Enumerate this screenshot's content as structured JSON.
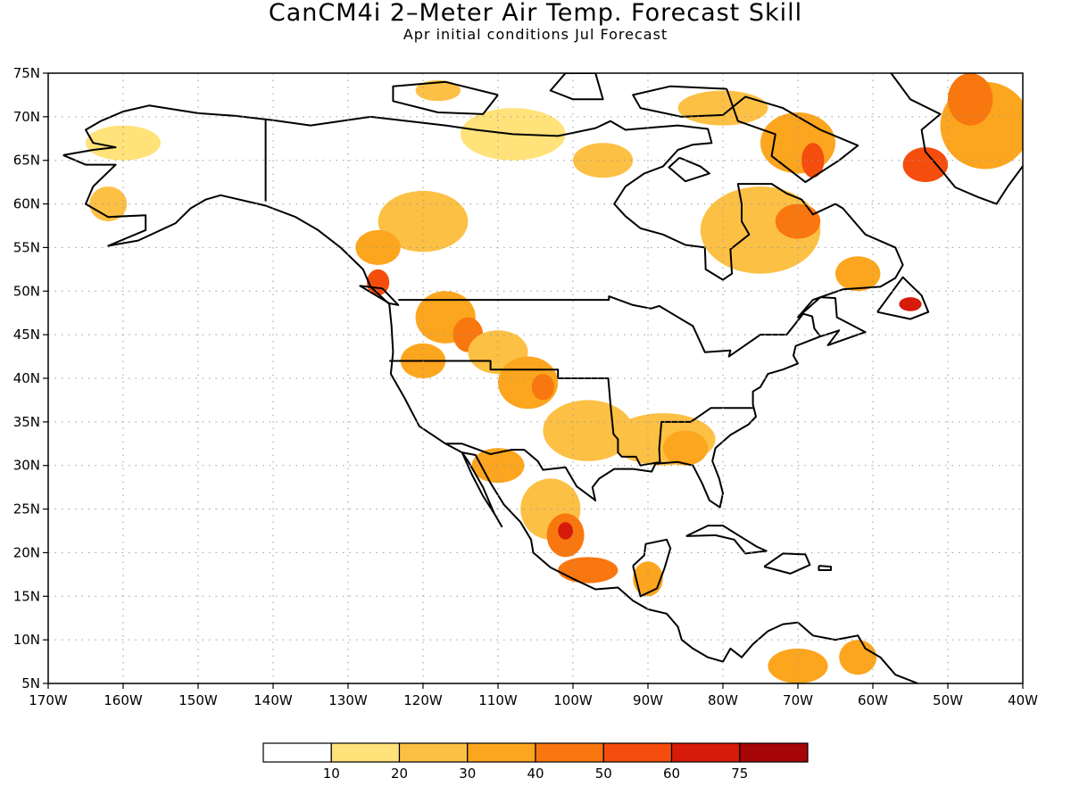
{
  "title": "CanCM4i 2–Meter Air Temp. Forecast Skill",
  "subtitle": "Apr initial conditions   Jul Forecast",
  "lat_ticks": [
    "75N",
    "70N",
    "65N",
    "60N",
    "55N",
    "50N",
    "45N",
    "40N",
    "35N",
    "30N",
    "25N",
    "20N",
    "15N",
    "10N",
    "5N"
  ],
  "lon_ticks": [
    "170W",
    "160W",
    "150W",
    "140W",
    "130W",
    "120W",
    "110W",
    "100W",
    "90W",
    "80W",
    "70W",
    "60W",
    "50W",
    "40W"
  ],
  "extent": {
    "lon": [
      -170,
      -40
    ],
    "lat": [
      5,
      75
    ]
  },
  "colorbar": {
    "labels": [
      "10",
      "20",
      "30",
      "40",
      "50",
      "60",
      "75"
    ],
    "colors": [
      "#ffffff",
      "#ffe27a",
      "#fcc045",
      "#fca51e",
      "#f9770f",
      "#f44d0d",
      "#d61b0b",
      "#a60606"
    ]
  },
  "skill_regions": [
    {
      "lon": -160,
      "lat": 67,
      "rx": 5,
      "ry": 2,
      "level": 1
    },
    {
      "lon": -162,
      "lat": 60,
      "rx": 2.5,
      "ry": 2,
      "level": 2
    },
    {
      "lon": -120,
      "lat": 58,
      "rx": 6,
      "ry": 3.5,
      "level": 2
    },
    {
      "lon": -126,
      "lat": 55,
      "rx": 3,
      "ry": 2,
      "level": 3
    },
    {
      "lon": -126,
      "lat": 51,
      "rx": 1.5,
      "ry": 1.5,
      "level": 5
    },
    {
      "lon": -117,
      "lat": 47,
      "rx": 4,
      "ry": 3,
      "level": 3
    },
    {
      "lon": -114,
      "lat": 45,
      "rx": 2,
      "ry": 2,
      "level": 4
    },
    {
      "lon": -110,
      "lat": 43,
      "rx": 4,
      "ry": 2.5,
      "level": 2
    },
    {
      "lon": -106,
      "lat": 39.5,
      "rx": 4,
      "ry": 3,
      "level": 3
    },
    {
      "lon": -104,
      "lat": 39,
      "rx": 1.5,
      "ry": 1.5,
      "level": 4
    },
    {
      "lon": -120,
      "lat": 42,
      "rx": 3,
      "ry": 2,
      "level": 3
    },
    {
      "lon": -98,
      "lat": 34,
      "rx": 6,
      "ry": 3.5,
      "level": 2
    },
    {
      "lon": -88,
      "lat": 33,
      "rx": 7,
      "ry": 3,
      "level": 2
    },
    {
      "lon": -85,
      "lat": 32,
      "rx": 3,
      "ry": 2,
      "level": 3
    },
    {
      "lon": -110,
      "lat": 30,
      "rx": 3.5,
      "ry": 2,
      "level": 3
    },
    {
      "lon": -103,
      "lat": 25,
      "rx": 4,
      "ry": 3.5,
      "level": 2
    },
    {
      "lon": -101,
      "lat": 22,
      "rx": 2.5,
      "ry": 2.5,
      "level": 4
    },
    {
      "lon": -101,
      "lat": 22.5,
      "rx": 1,
      "ry": 1,
      "level": 6
    },
    {
      "lon": -98,
      "lat": 18,
      "rx": 4,
      "ry": 1.5,
      "level": 4
    },
    {
      "lon": -90,
      "lat": 17,
      "rx": 2,
      "ry": 2,
      "level": 3
    },
    {
      "lon": -70,
      "lat": 7,
      "rx": 4,
      "ry": 2,
      "level": 3
    },
    {
      "lon": -62,
      "lat": 8,
      "rx": 2.5,
      "ry": 2,
      "level": 3
    },
    {
      "lon": -75,
      "lat": 57,
      "rx": 8,
      "ry": 5,
      "level": 2
    },
    {
      "lon": -70,
      "lat": 58,
      "rx": 3,
      "ry": 2,
      "level": 4
    },
    {
      "lon": -70,
      "lat": 67,
      "rx": 5,
      "ry": 3.5,
      "level": 3
    },
    {
      "lon": -68,
      "lat": 65,
      "rx": 1.5,
      "ry": 2,
      "level": 5
    },
    {
      "lon": -80,
      "lat": 71,
      "rx": 6,
      "ry": 2,
      "level": 2
    },
    {
      "lon": -108,
      "lat": 68,
      "rx": 7,
      "ry": 3,
      "level": 1
    },
    {
      "lon": -96,
      "lat": 65,
      "rx": 4,
      "ry": 2,
      "level": 2
    },
    {
      "lon": -118,
      "lat": 73,
      "rx": 3,
      "ry": 1.2,
      "level": 2
    },
    {
      "lon": -55,
      "lat": 48.5,
      "rx": 1.5,
      "ry": 0.8,
      "level": 6
    },
    {
      "lon": -45,
      "lat": 69,
      "rx": 6,
      "ry": 5,
      "level": 3
    },
    {
      "lon": -53,
      "lat": 64.5,
      "rx": 3,
      "ry": 2,
      "level": 5
    },
    {
      "lon": -47,
      "lat": 72,
      "rx": 3,
      "ry": 3,
      "level": 4
    },
    {
      "lon": -62,
      "lat": 52,
      "rx": 3,
      "ry": 2,
      "level": 3
    }
  ]
}
